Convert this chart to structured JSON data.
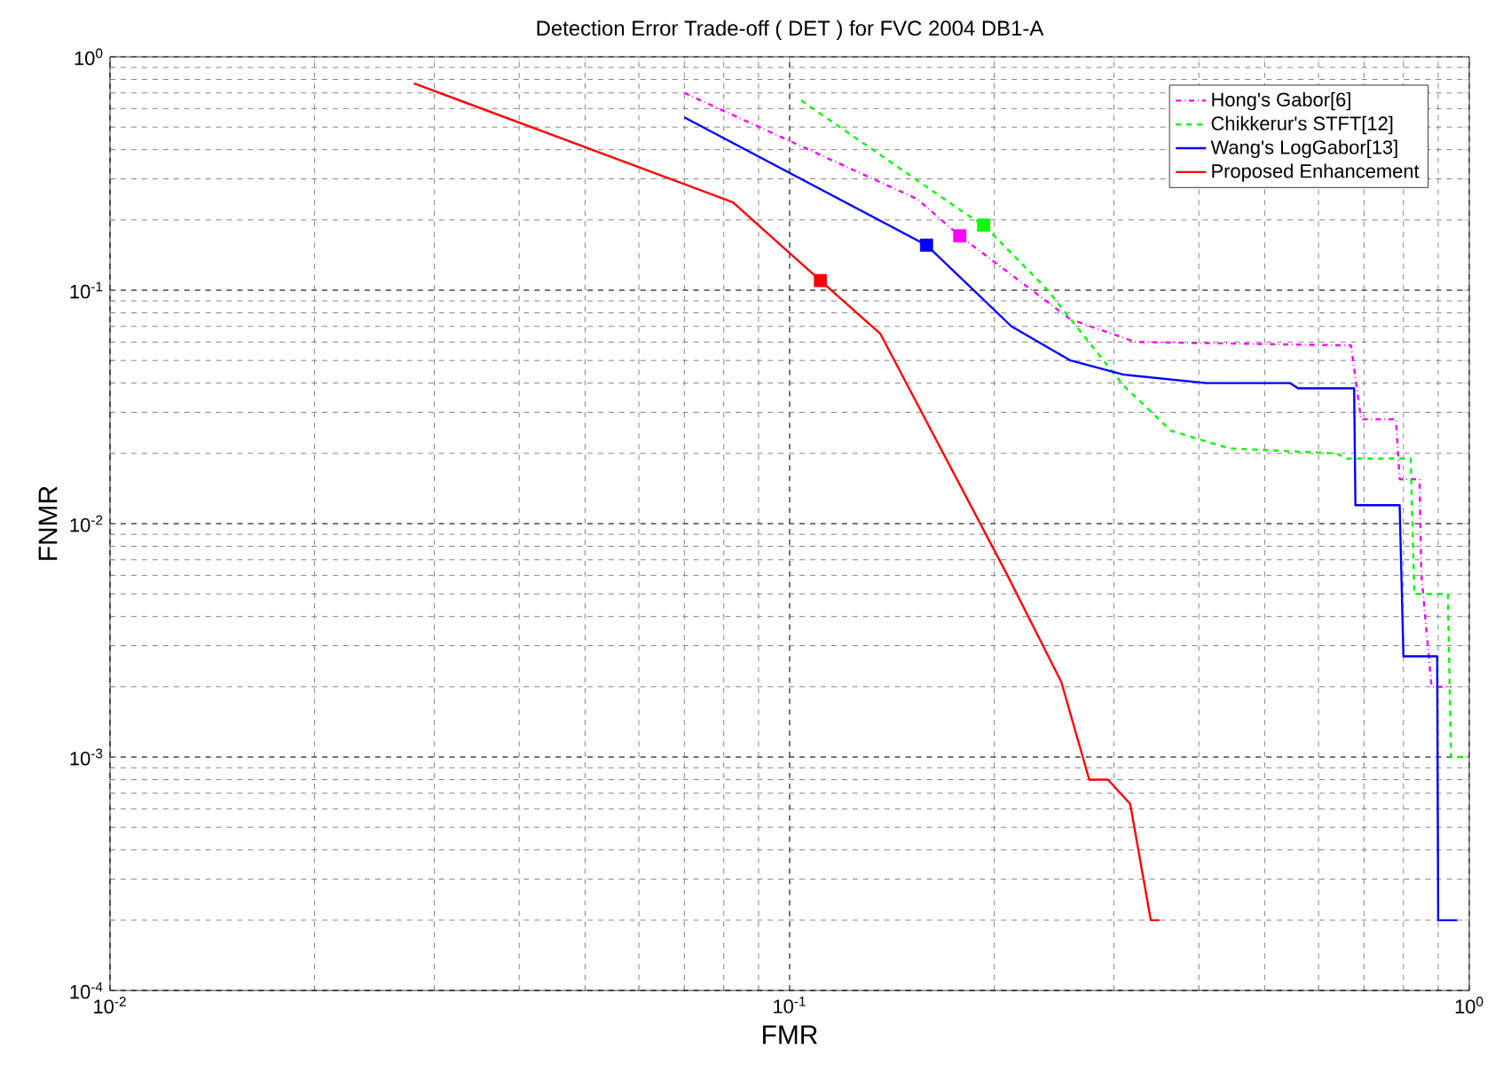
{
  "chart_data": {
    "type": "line",
    "title": "Detection Error Trade-off ( DET ) for FVC 2004 DB1-A",
    "xlabel": "FMR",
    "ylabel": "FNMR",
    "log": "xy",
    "grid": true,
    "legend": "top right",
    "xlim": [
      0.01,
      1
    ],
    "ylim": [
      0.0001,
      1
    ],
    "xticks": [
      {
        "value": 0.01,
        "label": "10$^{-2}$"
      },
      {
        "value": 0.1,
        "label": "10$^{-1}$"
      },
      {
        "value": 1,
        "label": "10$^{0}$"
      }
    ],
    "yticks": [
      {
        "value": 0.0001,
        "label": "10$^{-4}$"
      },
      {
        "value": 0.001,
        "label": "10$^{-3}$"
      },
      {
        "value": 0.01,
        "label": "10$^{-2}$"
      },
      {
        "value": 0.1,
        "label": "10$^{-1}$"
      },
      {
        "value": 1,
        "label": "10$^{0}$"
      }
    ],
    "series": [
      {
        "name": "Hong's Gabor[6]",
        "color": "#ff00ff",
        "line_style": "dashdot",
        "x": [
          0.07,
          0.154,
          0.178,
          0.259,
          0.323,
          0.67,
          0.693,
          0.78,
          0.79,
          0.845,
          0.85,
          0.88,
          0.94
        ],
        "values": [
          0.7,
          0.246,
          0.171,
          0.075,
          0.06,
          0.058,
          0.028,
          0.028,
          0.0155,
          0.0155,
          0.0061,
          0.002,
          0.002
        ]
      },
      {
        "name": "Chikkerur's STFT[12]",
        "color": "#00ff00",
        "line_style": "dashed",
        "x": [
          0.104,
          0.181,
          0.193,
          0.239,
          0.31,
          0.364,
          0.444,
          0.637,
          0.66,
          0.82,
          0.83,
          0.87,
          0.88,
          0.93,
          0.94,
          0.99
        ],
        "values": [
          0.65,
          0.214,
          0.19,
          0.101,
          0.039,
          0.025,
          0.021,
          0.02,
          0.019,
          0.019,
          0.005,
          0.005,
          0.005,
          0.005,
          0.001,
          0.001
        ]
      },
      {
        "name": "Wang's LogGabor[13]",
        "color": "#0000ff",
        "line_style": "solid",
        "x": [
          0.07,
          0.159,
          0.212,
          0.259,
          0.31,
          0.41,
          0.545,
          0.56,
          0.677,
          0.68,
          0.79,
          0.8,
          0.897,
          0.9,
          0.96
        ],
        "values": [
          0.55,
          0.156,
          0.07,
          0.05,
          0.0435,
          0.04,
          0.04,
          0.038,
          0.038,
          0.012,
          0.012,
          0.0027,
          0.0027,
          0.0002,
          0.0002
        ]
      },
      {
        "name": "Proposed Enhancement",
        "color": "#ff0000",
        "line_style": "solid",
        "x": [
          0.028,
          0.0825,
          0.111,
          0.136,
          0.208,
          0.251,
          0.276,
          0.294,
          0.317,
          0.34,
          0.35
        ],
        "values": [
          0.77,
          0.238,
          0.11,
          0.065,
          0.0062,
          0.0021,
          0.0008,
          0.0008,
          0.00063,
          0.0002,
          0.0002
        ]
      },
      {
        "type": "scatter",
        "color": "#ff00ff",
        "marker": "square",
        "x": [
          0.178
        ],
        "values": [
          0.171
        ]
      },
      {
        "type": "scatter",
        "color": "#00ff00",
        "marker": "square",
        "x": [
          0.193
        ],
        "values": [
          0.19
        ]
      },
      {
        "type": "scatter",
        "color": "#0000ff",
        "marker": "square",
        "x": [
          0.159
        ],
        "values": [
          0.156
        ]
      },
      {
        "type": "scatter",
        "color": "#ff0000",
        "marker": "square",
        "x": [
          0.111
        ],
        "values": [
          0.11
        ]
      }
    ]
  }
}
